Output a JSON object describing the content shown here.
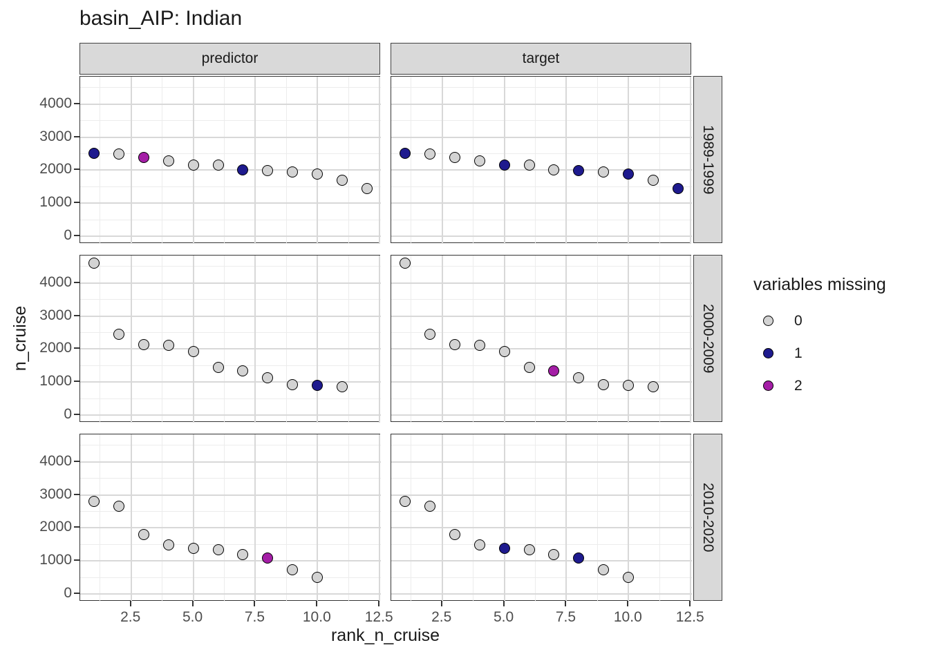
{
  "title": "basin_AIP: Indian",
  "axes": {
    "x_label": "rank_n_cruise",
    "y_label": "n_cruise"
  },
  "legend": {
    "title": "variables missing",
    "entries": [
      {
        "label": "0",
        "color": "#D3D3D3"
      },
      {
        "label": "1",
        "color": "#1E1A8E"
      },
      {
        "label": "2",
        "color": "#A41EA6"
      }
    ]
  },
  "colors": {
    "point_stroke": "#000000",
    "missing_fill": {
      "0": "#D3D3D3",
      "1": "#1E1A8E",
      "2": "#A41EA6"
    },
    "strip_bg": "#D9D9D9",
    "panel_border": "#333333",
    "grid_major": "#D8D8D8",
    "grid_minor": "#ECECEC",
    "axis_text": "#4D4D4D",
    "tick_mark": "#333333"
  },
  "chart_data": {
    "type": "scatter",
    "title": "basin_AIP: Indian",
    "xlabel": "rank_n_cruise",
    "ylabel": "n_cruise",
    "legend_title": "variables missing",
    "legend_position": "right",
    "grid": true,
    "facet_cols": [
      "predictor",
      "target"
    ],
    "facet_rows": [
      "1989-1999",
      "2000-2009",
      "2010-2020"
    ],
    "x_ticks": [
      2.5,
      5.0,
      7.5,
      10.0,
      12.5
    ],
    "x_tick_labels": [
      "2.5",
      "5.0",
      "7.5",
      "10.0",
      "12.5"
    ],
    "y_ticks": [
      0,
      1000,
      2000,
      3000,
      4000
    ],
    "y_tick_labels": [
      "0",
      "1000",
      "2000",
      "3000",
      "4000"
    ],
    "x_range": [
      0.45,
      12.55
    ],
    "y_range": [
      -230,
      4830
    ],
    "panels": [
      {
        "col": "predictor",
        "row": "1989-1999",
        "ranks": [
          1,
          2,
          3,
          4,
          5,
          6,
          7,
          8,
          9,
          10,
          11,
          12
        ],
        "n_cruise": [
          2510,
          2480,
          2390,
          2270,
          2160,
          2150,
          2000,
          1980,
          1950,
          1890,
          1700,
          1440
        ],
        "missing": [
          1,
          0,
          2,
          0,
          0,
          0,
          1,
          0,
          0,
          0,
          0,
          0
        ]
      },
      {
        "col": "target",
        "row": "1989-1999",
        "ranks": [
          1,
          2,
          3,
          4,
          5,
          6,
          7,
          8,
          9,
          10,
          11,
          12
        ],
        "n_cruise": [
          2510,
          2480,
          2390,
          2270,
          2160,
          2150,
          2000,
          1980,
          1950,
          1890,
          1700,
          1440
        ],
        "missing": [
          1,
          0,
          0,
          0,
          1,
          0,
          0,
          1,
          0,
          1,
          0,
          1
        ]
      },
      {
        "col": "predictor",
        "row": "2000-2009",
        "ranks": [
          1,
          2,
          3,
          4,
          5,
          6,
          7,
          8,
          9,
          10,
          11
        ],
        "n_cruise": [
          4600,
          2450,
          2140,
          2110,
          1920,
          1450,
          1330,
          1120,
          910,
          890,
          850
        ],
        "missing": [
          0,
          0,
          0,
          0,
          0,
          0,
          0,
          0,
          0,
          1,
          0
        ]
      },
      {
        "col": "target",
        "row": "2000-2009",
        "ranks": [
          1,
          2,
          3,
          4,
          5,
          6,
          7,
          8,
          9,
          10,
          11
        ],
        "n_cruise": [
          4600,
          2450,
          2140,
          2110,
          1920,
          1450,
          1330,
          1120,
          910,
          890,
          850
        ],
        "missing": [
          0,
          0,
          0,
          0,
          0,
          0,
          2,
          0,
          0,
          0,
          0
        ]
      },
      {
        "col": "predictor",
        "row": "2010-2020",
        "ranks": [
          1,
          2,
          3,
          4,
          5,
          6,
          7,
          8,
          9,
          10
        ],
        "n_cruise": [
          2800,
          2650,
          1800,
          1490,
          1390,
          1340,
          1200,
          1080,
          740,
          500
        ],
        "missing": [
          0,
          0,
          0,
          0,
          0,
          0,
          0,
          2,
          0,
          0
        ]
      },
      {
        "col": "target",
        "row": "2010-2020",
        "ranks": [
          1,
          2,
          3,
          4,
          5,
          6,
          7,
          8,
          9,
          10
        ],
        "n_cruise": [
          2800,
          2650,
          1800,
          1490,
          1390,
          1340,
          1200,
          1080,
          740,
          500
        ],
        "missing": [
          0,
          0,
          0,
          0,
          1,
          0,
          0,
          1,
          0,
          0
        ]
      }
    ]
  }
}
